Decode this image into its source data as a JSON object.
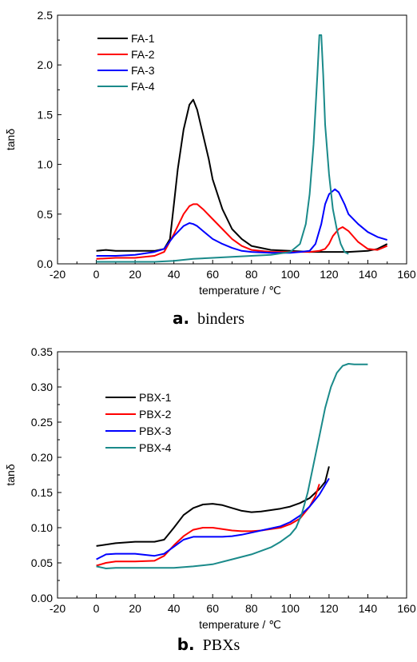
{
  "captions": {
    "a_letter": "a.",
    "a_text": "binders",
    "b_letter": "b.",
    "b_text": "PBXs"
  },
  "chart_data": [
    {
      "type": "line",
      "xlabel": "temperature / ℃",
      "ylabel": "tanδ",
      "xlim": [
        -20,
        160
      ],
      "ylim": [
        0,
        2.5
      ],
      "xticks": [
        "-20",
        "0",
        "20",
        "40",
        "60",
        "80",
        "100",
        "120",
        "140",
        "160"
      ],
      "yticks": [
        "0.0",
        "0.5",
        "1.0",
        "1.5",
        "2.0",
        "2.5"
      ],
      "legend_position": "top-left",
      "grid": false,
      "series": [
        {
          "name": "FA-1",
          "color": "#000000",
          "x": [
            0,
            5,
            10,
            20,
            30,
            35,
            38,
            40,
            42,
            45,
            48,
            50,
            52,
            55,
            58,
            60,
            65,
            70,
            75,
            80,
            90,
            100,
            110,
            120,
            130,
            140,
            145,
            150
          ],
          "y": [
            0.13,
            0.14,
            0.13,
            0.13,
            0.13,
            0.15,
            0.25,
            0.6,
            0.95,
            1.35,
            1.6,
            1.65,
            1.55,
            1.3,
            1.05,
            0.85,
            0.55,
            0.35,
            0.25,
            0.18,
            0.14,
            0.13,
            0.12,
            0.12,
            0.12,
            0.13,
            0.15,
            0.2
          ]
        },
        {
          "name": "FA-2",
          "color": "#ff0000",
          "x": [
            0,
            10,
            20,
            30,
            35,
            40,
            45,
            48,
            50,
            52,
            55,
            60,
            65,
            70,
            75,
            80,
            90,
            100,
            110,
            115,
            118,
            120,
            122,
            125,
            127,
            130,
            135,
            140,
            145,
            150
          ],
          "y": [
            0.05,
            0.06,
            0.06,
            0.08,
            0.12,
            0.3,
            0.5,
            0.58,
            0.6,
            0.6,
            0.55,
            0.45,
            0.35,
            0.25,
            0.18,
            0.14,
            0.12,
            0.12,
            0.12,
            0.13,
            0.15,
            0.2,
            0.28,
            0.35,
            0.37,
            0.33,
            0.22,
            0.15,
            0.14,
            0.18
          ]
        },
        {
          "name": "FA-3",
          "color": "#0000ff",
          "x": [
            0,
            10,
            20,
            30,
            35,
            40,
            45,
            48,
            50,
            52,
            55,
            60,
            65,
            70,
            75,
            80,
            90,
            100,
            105,
            110,
            113,
            116,
            118,
            120,
            123,
            125,
            128,
            130,
            135,
            140,
            145,
            150
          ],
          "y": [
            0.08,
            0.08,
            0.09,
            0.12,
            0.15,
            0.28,
            0.38,
            0.41,
            0.4,
            0.38,
            0.33,
            0.25,
            0.2,
            0.16,
            0.13,
            0.12,
            0.11,
            0.11,
            0.12,
            0.13,
            0.2,
            0.4,
            0.6,
            0.7,
            0.75,
            0.72,
            0.6,
            0.5,
            0.4,
            0.32,
            0.27,
            0.24
          ]
        },
        {
          "name": "FA-4",
          "color": "#1a8a8a",
          "x": [
            0,
            10,
            20,
            30,
            40,
            50,
            60,
            70,
            80,
            90,
            100,
            105,
            108,
            110,
            112,
            114,
            115,
            116,
            117,
            118,
            120,
            122,
            124,
            126,
            128,
            130
          ],
          "y": [
            0.02,
            0.02,
            0.02,
            0.02,
            0.03,
            0.05,
            0.06,
            0.07,
            0.08,
            0.09,
            0.12,
            0.2,
            0.4,
            0.7,
            1.2,
            1.9,
            2.3,
            2.3,
            1.9,
            1.4,
            0.9,
            0.55,
            0.35,
            0.2,
            0.12,
            0.1
          ]
        }
      ]
    },
    {
      "type": "line",
      "xlabel": "temperature / ℃",
      "ylabel": "tanδ",
      "xlim": [
        -20,
        160
      ],
      "ylim": [
        0,
        0.35
      ],
      "xticks": [
        "-20",
        "0",
        "20",
        "40",
        "60",
        "80",
        "100",
        "120",
        "140",
        "160"
      ],
      "yticks": [
        "0.00",
        "0.05",
        "0.10",
        "0.15",
        "0.20",
        "0.25",
        "0.30",
        "0.35"
      ],
      "legend_position": "top-left",
      "grid": false,
      "series": [
        {
          "name": "PBX-1",
          "color": "#000000",
          "x": [
            0,
            10,
            20,
            30,
            35,
            40,
            45,
            50,
            55,
            60,
            65,
            70,
            75,
            80,
            85,
            90,
            95,
            100,
            105,
            110,
            115,
            118,
            120
          ],
          "y": [
            0.074,
            0.078,
            0.08,
            0.08,
            0.083,
            0.1,
            0.118,
            0.128,
            0.133,
            0.134,
            0.132,
            0.128,
            0.124,
            0.122,
            0.123,
            0.125,
            0.127,
            0.13,
            0.135,
            0.142,
            0.155,
            0.165,
            0.187
          ]
        },
        {
          "name": "PBX-2",
          "color": "#ff0000",
          "x": [
            0,
            5,
            10,
            20,
            30,
            35,
            40,
            45,
            50,
            55,
            60,
            65,
            70,
            75,
            80,
            85,
            90,
            95,
            100,
            105,
            110,
            113,
            115
          ],
          "y": [
            0.046,
            0.05,
            0.052,
            0.052,
            0.053,
            0.06,
            0.075,
            0.088,
            0.097,
            0.1,
            0.1,
            0.098,
            0.096,
            0.095,
            0.095,
            0.096,
            0.098,
            0.1,
            0.105,
            0.113,
            0.13,
            0.145,
            0.162
          ]
        },
        {
          "name": "PBX-3",
          "color": "#0000ff",
          "x": [
            0,
            5,
            10,
            20,
            30,
            35,
            40,
            45,
            50,
            55,
            60,
            65,
            70,
            75,
            80,
            85,
            90,
            95,
            100,
            105,
            110,
            115,
            120
          ],
          "y": [
            0.055,
            0.062,
            0.063,
            0.063,
            0.06,
            0.063,
            0.073,
            0.083,
            0.087,
            0.087,
            0.087,
            0.087,
            0.088,
            0.09,
            0.093,
            0.096,
            0.099,
            0.102,
            0.108,
            0.117,
            0.13,
            0.147,
            0.17
          ]
        },
        {
          "name": "PBX-4",
          "color": "#1a8a8a",
          "x": [
            0,
            5,
            10,
            20,
            30,
            40,
            50,
            60,
            70,
            80,
            90,
            95,
            100,
            103,
            106,
            109,
            112,
            115,
            118,
            121,
            124,
            127,
            130,
            133,
            136,
            140
          ],
          "y": [
            0.045,
            0.042,
            0.043,
            0.043,
            0.043,
            0.043,
            0.045,
            0.048,
            0.055,
            0.062,
            0.072,
            0.08,
            0.09,
            0.1,
            0.12,
            0.15,
            0.19,
            0.23,
            0.27,
            0.3,
            0.32,
            0.33,
            0.333,
            0.332,
            0.332,
            0.332
          ]
        }
      ]
    }
  ]
}
